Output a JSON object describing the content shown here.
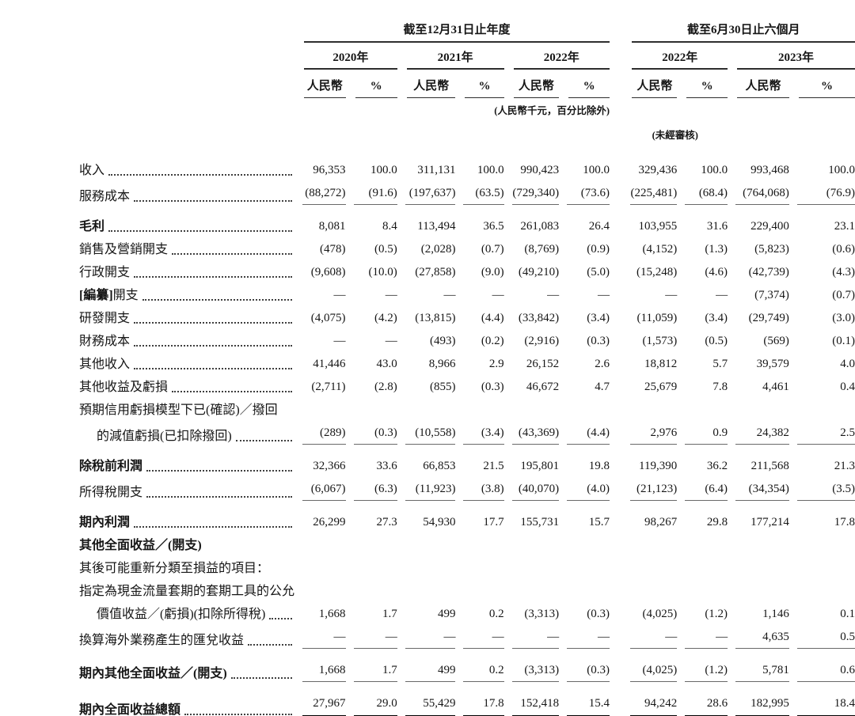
{
  "table": {
    "header": {
      "annual_group": "截至12月31日止年度",
      "interim_group": "截至6月30日止六個月",
      "years": [
        "2020年",
        "2021年",
        "2022年",
        "2022年",
        "2023年"
      ],
      "currency_label": "人民幣",
      "percent_label": "%",
      "units_note": "(人民幣千元，百分比除外)",
      "unaudited_note": "(未經審核)"
    },
    "rows": [
      {
        "name": "revenue",
        "label": "收入",
        "leaders": true,
        "values": [
          "96,353",
          "100.0",
          "311,131",
          "100.0",
          "990,423",
          "100.0",
          "329,436",
          "100.0",
          "993,468",
          "100.0"
        ]
      },
      {
        "name": "cost-of-services",
        "label": "服務成本",
        "leaders": true,
        "rule": true,
        "values": [
          "(88,272)",
          "(91.6)",
          "(197,637)",
          "(63.5)",
          "(729,340)",
          "(73.6)",
          "(225,481)",
          "(68.4)",
          "(764,068)",
          "(76.9)"
        ]
      },
      {
        "name": "gross-profit",
        "label": "毛利",
        "leaders": true,
        "bold": true,
        "gap": true,
        "values": [
          "8,081",
          "8.4",
          "113,494",
          "36.5",
          "261,083",
          "26.4",
          "103,955",
          "31.6",
          "229,400",
          "23.1"
        ]
      },
      {
        "name": "selling-marketing-expenses",
        "label": "銷售及營銷開支",
        "leaders": true,
        "values": [
          "(478)",
          "(0.5)",
          "(2,028)",
          "(0.7)",
          "(8,769)",
          "(0.9)",
          "(4,152)",
          "(1.3)",
          "(5,823)",
          "(0.6)"
        ]
      },
      {
        "name": "administrative-expenses",
        "label": "行政開支",
        "leaders": true,
        "values": [
          "(9,608)",
          "(10.0)",
          "(27,858)",
          "(9.0)",
          "(49,210)",
          "(5.0)",
          "(15,248)",
          "(4.6)",
          "(42,739)",
          "(4.3)"
        ]
      },
      {
        "name": "redacted-expenses",
        "label_bold_prefix": "[編纂]",
        "label": "開支",
        "leaders": true,
        "values": [
          "—",
          "—",
          "—",
          "—",
          "—",
          "—",
          "—",
          "—",
          "(7,374)",
          "(0.7)"
        ]
      },
      {
        "name": "rd-expenses",
        "label": "研發開支",
        "leaders": true,
        "values": [
          "(4,075)",
          "(4.2)",
          "(13,815)",
          "(4.4)",
          "(33,842)",
          "(3.4)",
          "(11,059)",
          "(3.4)",
          "(29,749)",
          "(3.0)"
        ]
      },
      {
        "name": "finance-costs",
        "label": "財務成本",
        "leaders": true,
        "values": [
          "—",
          "—",
          "(493)",
          "(0.2)",
          "(2,916)",
          "(0.3)",
          "(1,573)",
          "(0.5)",
          "(569)",
          "(0.1)"
        ]
      },
      {
        "name": "other-income",
        "label": "其他收入",
        "leaders": true,
        "values": [
          "41,446",
          "43.0",
          "8,966",
          "2.9",
          "26,152",
          "2.6",
          "18,812",
          "5.7",
          "39,579",
          "4.0"
        ]
      },
      {
        "name": "other-gains-losses",
        "label": "其他收益及虧損",
        "leaders": true,
        "values": [
          "(2,711)",
          "(2.8)",
          "(855)",
          "(0.3)",
          "46,672",
          "4.7",
          "25,679",
          "7.8",
          "4,461",
          "0.4"
        ]
      },
      {
        "name": "ecl-impairment-line1",
        "label": "預期信用虧損模型下已(確認)／撥回",
        "leaders": false,
        "values": [
          "",
          "",
          "",
          "",
          "",
          "",
          "",
          "",
          "",
          ""
        ]
      },
      {
        "name": "ecl-impairment-line2",
        "label": "的減值虧損(已扣除撥回)",
        "leaders": true,
        "indent": true,
        "rule": true,
        "values": [
          "(289)",
          "(0.3)",
          "(10,558)",
          "(3.4)",
          "(43,369)",
          "(4.4)",
          "2,976",
          "0.9",
          "24,382",
          "2.5"
        ]
      },
      {
        "name": "profit-before-tax",
        "label": "除稅前利潤",
        "leaders": true,
        "bold": true,
        "gap": true,
        "values": [
          "32,366",
          "33.6",
          "66,853",
          "21.5",
          "195,801",
          "19.8",
          "119,390",
          "36.2",
          "211,568",
          "21.3"
        ]
      },
      {
        "name": "income-tax-expense",
        "label": "所得稅開支",
        "leaders": true,
        "rule": true,
        "values": [
          "(6,067)",
          "(6.3)",
          "(11,923)",
          "(3.8)",
          "(40,070)",
          "(4.0)",
          "(21,123)",
          "(6.4)",
          "(34,354)",
          "(3.5)"
        ]
      },
      {
        "name": "profit-for-period",
        "label": "期內利潤",
        "leaders": true,
        "bold": true,
        "gap": true,
        "values": [
          "26,299",
          "27.3",
          "54,930",
          "17.7",
          "155,731",
          "15.7",
          "98,267",
          "29.8",
          "177,214",
          "17.8"
        ]
      },
      {
        "name": "oci-heading",
        "label": "其他全面收益／(開支)",
        "leaders": false,
        "bold": true,
        "values": [
          "",
          "",
          "",
          "",
          "",
          "",
          "",
          "",
          "",
          ""
        ]
      },
      {
        "name": "reclassify-heading",
        "label": "其後可能重新分類至損益的項目：",
        "leaders": false,
        "values": [
          "",
          "",
          "",
          "",
          "",
          "",
          "",
          "",
          "",
          ""
        ]
      },
      {
        "name": "hedging-line1",
        "label": "指定為現金流量套期的套期工具的公允",
        "leaders": false,
        "values": [
          "",
          "",
          "",
          "",
          "",
          "",
          "",
          "",
          "",
          ""
        ]
      },
      {
        "name": "hedging-line2",
        "label": "價值收益／(虧損)(扣除所得稅)",
        "leaders": true,
        "indent": true,
        "values": [
          "1,668",
          "1.7",
          "499",
          "0.2",
          "(3,313)",
          "(0.3)",
          "(4,025)",
          "(1.2)",
          "1,146",
          "0.1"
        ]
      },
      {
        "name": "fx-translation-gains",
        "label": "換算海外業務產生的匯兌收益",
        "leaders": true,
        "rule": true,
        "values": [
          "—",
          "—",
          "—",
          "—",
          "—",
          "—",
          "—",
          "—",
          "4,635",
          "0.5"
        ]
      },
      {
        "name": "other-comprehensive-income",
        "label": "期內其他全面收益／(開支)",
        "leaders": true,
        "bold": true,
        "gap": true,
        "rule": true,
        "values": [
          "1,668",
          "1.7",
          "499",
          "0.2",
          "(3,313)",
          "(0.3)",
          "(4,025)",
          "(1.2)",
          "5,781",
          "0.6"
        ]
      },
      {
        "name": "total-comprehensive-income",
        "label": "期內全面收益總額",
        "leaders": true,
        "bold": true,
        "gap": true,
        "dblrule": true,
        "values": [
          "27,967",
          "29.0",
          "55,429",
          "17.8",
          "152,418",
          "15.4",
          "94,242",
          "28.6",
          "182,995",
          "18.4"
        ]
      }
    ]
  }
}
